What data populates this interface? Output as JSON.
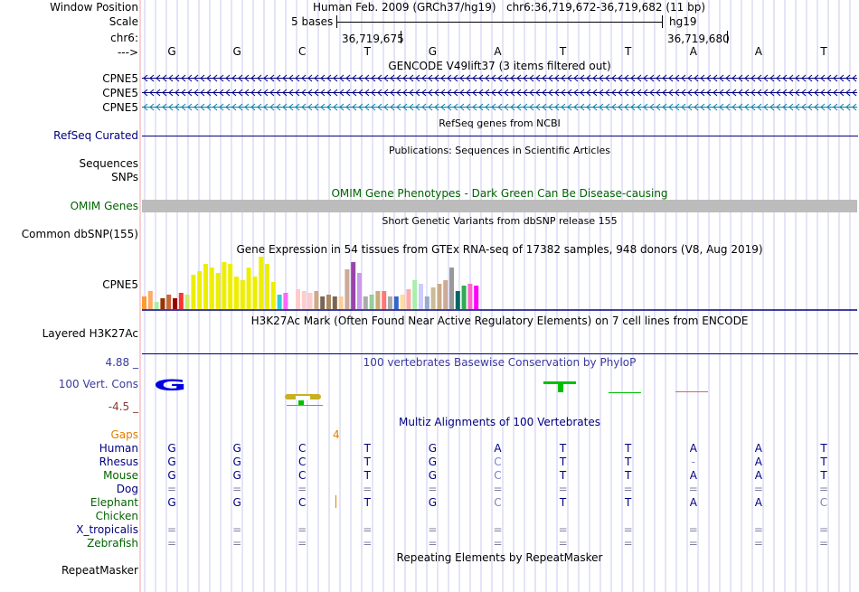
{
  "header": {
    "window_position_label": "Window Position",
    "scale_label": "Scale",
    "chrom_label": "chr6:",
    "arrow_label": "--->",
    "assembly_text": "Human Feb. 2009 (GRCh37/hg19)",
    "position_text": "chr6:36,719,672-36,719,682 (11 bp)",
    "scale_text": "5 bases",
    "scale_db": "hg19",
    "coord_1": "36,719,675",
    "coord_2": "36,719,680"
  },
  "bases": [
    "G",
    "G",
    "C",
    "T",
    "G",
    "A",
    "T",
    "T",
    "A",
    "A",
    "T"
  ],
  "gencode": {
    "title": "GENCODE V49lift37 (3 items filtered out)",
    "genes": [
      {
        "name": "CPNE5",
        "color": "#000080"
      },
      {
        "name": "CPNE5",
        "color": "#000080"
      },
      {
        "name": "CPNE5",
        "color": "#0a7fa8"
      }
    ]
  },
  "refseq": {
    "title": "RefSeq genes from NCBI",
    "label": "RefSeq Curated"
  },
  "publications": {
    "title": "Publications: Sequences in Scientific Articles",
    "label_1": "Sequences",
    "label_2": "SNPs"
  },
  "omim": {
    "title": "OMIM Gene Phenotypes - Dark Green Can Be Disease-causing",
    "label": "OMIM Genes"
  },
  "dbsnp": {
    "title": "Short Genetic Variants from dbSNP release 155",
    "label": "Common dbSNP(155)"
  },
  "gtex": {
    "title": "Gene Expression in 54 tissues from GTEx RNA-seq of 17382 samples, 948 donors (V8, Aug 2019)",
    "label": "CPNE5"
  },
  "h3k27ac": {
    "title": "H3K27Ac Mark (Often Found Near Active Regulatory Elements) on 7 cell lines from ENCODE",
    "label": "Layered H3K27Ac"
  },
  "conservation": {
    "title": "100 vertebrates Basewise Conservation by PhyloP",
    "label": "100 Vert. Cons",
    "max_label": "4.88 _",
    "min_label": "-4.5 _"
  },
  "multiz": {
    "title": "Multiz Alignments of 100 Vertebrates",
    "gaps_label": "Gaps",
    "gap_count": "4",
    "species": [
      {
        "name": "Human",
        "bases": [
          "G",
          "G",
          "C",
          "T",
          "G",
          "A",
          "T",
          "T",
          "A",
          "A",
          "T"
        ]
      },
      {
        "name": "Rhesus",
        "bases": [
          "G",
          "G",
          "C",
          "T",
          "G",
          "C",
          "T",
          "T",
          "-",
          "A",
          "T"
        ]
      },
      {
        "name": "Mouse",
        "bases": [
          "G",
          "G",
          "C",
          "T",
          "G",
          "C",
          "T",
          "T",
          "A",
          "A",
          "T"
        ]
      },
      {
        "name": "Dog",
        "bases": [
          "=",
          "=",
          "=",
          "=",
          "=",
          "=",
          "=",
          "=",
          "=",
          "=",
          "="
        ]
      },
      {
        "name": "Elephant",
        "bases": [
          "G",
          "G",
          "C",
          "T",
          "G",
          "C",
          "T",
          "T",
          "A",
          "A",
          "C"
        ]
      },
      {
        "name": "Chicken",
        "bases": []
      },
      {
        "name": "X_tropicalis",
        "bases": [
          "=",
          "=",
          "=",
          "=",
          "=",
          "=",
          "=",
          "=",
          "=",
          "=",
          "="
        ]
      },
      {
        "name": "Zebrafish",
        "bases": [
          "=",
          "=",
          "=",
          "=",
          "=",
          "=",
          "=",
          "=",
          "=",
          "=",
          "="
        ]
      }
    ]
  },
  "repeatmasker": {
    "title": "Repeating Elements by RepeatMasker",
    "label": "RepeatMasker"
  },
  "colors": {
    "navy": "#000080",
    "dark_green": "#006400",
    "gap_orange": "#e08000",
    "grid_line": "#c8c8f0",
    "left_border": "#f0a0a0"
  }
}
